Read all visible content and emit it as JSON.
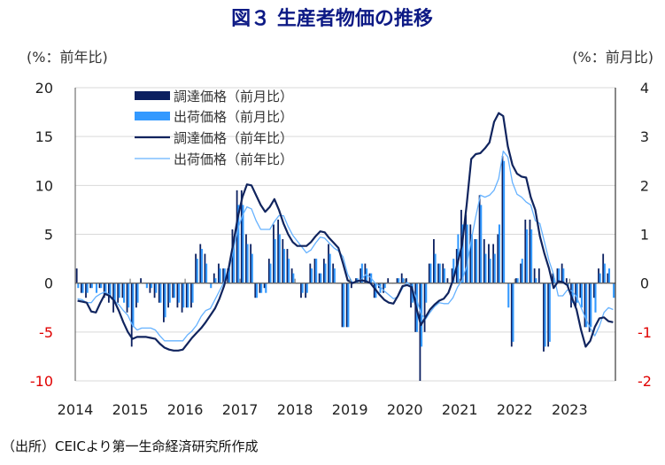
{
  "chart_data": {
    "type": "bar+line",
    "title": "図３ 生産者物価の推移",
    "left_axis_label": "(%：前年比)",
    "right_axis_label": "(%：前月比)",
    "left_ylim": [
      -10,
      20
    ],
    "left_ticks": [
      "20",
      "15",
      "10",
      "5",
      "0",
      "-5",
      "-10"
    ],
    "right_ylim": [
      -2,
      4
    ],
    "right_ticks": [
      "4",
      "3",
      "2",
      "1",
      "0",
      "-1",
      "-2"
    ],
    "x_ticks": [
      "2014",
      "2015",
      "2016",
      "2017",
      "2018",
      "2019",
      "2020",
      "2021",
      "2022",
      "2023"
    ],
    "x_start": "2014-01",
    "x_end": "2023-10",
    "grid": true,
    "legend_position": "top-left",
    "source": "（出所）CEICより第一生命経済研究所作成",
    "series": [
      {
        "name": "調達価格（前月比）",
        "kind": "bar",
        "axis": "right",
        "color": "#0c2060",
        "values": [
          0.3,
          -0.2,
          -0.3,
          -0.1,
          0.0,
          -0.1,
          -0.3,
          -0.4,
          -0.6,
          -0.4,
          -0.3,
          -0.6,
          -1.3,
          -0.5,
          0.1,
          0.0,
          -0.2,
          -0.3,
          -0.4,
          -0.8,
          -0.5,
          -0.3,
          -0.5,
          -0.6,
          -0.5,
          -0.5,
          0.6,
          0.8,
          0.6,
          0.0,
          0.2,
          0.4,
          0.3,
          0.3,
          1.1,
          1.9,
          1.9,
          1.0,
          0.8,
          -0.3,
          -0.2,
          -0.1,
          0.5,
          1.2,
          1.3,
          0.9,
          0.7,
          0.3,
          0.0,
          -0.3,
          -0.3,
          0.4,
          0.5,
          0.2,
          0.5,
          0.8,
          0.4,
          0.0,
          -0.9,
          -0.9,
          -0.1,
          0.1,
          0.3,
          0.4,
          0.2,
          -0.3,
          -0.1,
          -0.2,
          0.1,
          0.0,
          0.1,
          0.2,
          0.1,
          -0.5,
          -1.0,
          -2.0,
          -1.0,
          0.4,
          0.9,
          0.4,
          0.4,
          0.1,
          0.3,
          0.7,
          1.5,
          1.4,
          1.2,
          0.9,
          1.8,
          0.9,
          0.8,
          0.8,
          1.0,
          2.6,
          0.0,
          -1.3,
          0.1,
          0.4,
          1.3,
          1.3,
          0.3,
          0.3,
          -1.4,
          -1.3,
          0.2,
          0.3,
          0.4,
          0.1,
          -0.5,
          -0.5,
          -0.3,
          -0.9,
          -1.0,
          -0.3,
          0.3,
          0.6,
          0.2,
          0.0
        ]
      },
      {
        "name": "出荷価格（前月比）",
        "kind": "bar",
        "axis": "right",
        "color": "#3399ff",
        "values": [
          -0.1,
          -0.2,
          -0.2,
          -0.1,
          -0.2,
          -0.1,
          -0.2,
          -0.3,
          -0.4,
          -0.3,
          -0.4,
          -0.5,
          -0.9,
          -0.4,
          0.0,
          -0.1,
          -0.1,
          -0.2,
          -0.4,
          -0.7,
          -0.4,
          -0.3,
          -0.4,
          -0.5,
          -0.5,
          -0.4,
          0.5,
          0.7,
          0.4,
          -0.1,
          0.1,
          0.3,
          0.3,
          0.3,
          0.9,
          1.6,
          1.6,
          0.8,
          0.6,
          -0.3,
          -0.2,
          -0.2,
          0.4,
          0.9,
          1.0,
          0.7,
          0.5,
          0.2,
          0.0,
          -0.2,
          -0.2,
          0.3,
          0.5,
          0.2,
          0.4,
          0.6,
          0.3,
          0.0,
          -0.9,
          -0.9,
          0.0,
          0.1,
          0.4,
          0.3,
          0.2,
          -0.3,
          -0.2,
          -0.1,
          0.0,
          0.0,
          0.1,
          0.1,
          0.0,
          -0.4,
          -1.0,
          -1.3,
          -0.4,
          0.4,
          0.6,
          0.4,
          0.3,
          0.0,
          0.5,
          1.0,
          1.2,
          1.2,
          1.0,
          0.9,
          1.6,
          0.6,
          0.5,
          0.6,
          1.2,
          2.5,
          -0.5,
          -1.2,
          0.1,
          0.5,
          1.1,
          1.1,
          0.1,
          0.0,
          -1.3,
          -1.2,
          0.1,
          0.3,
          0.3,
          -0.1,
          -0.4,
          -0.4,
          -0.5,
          -0.9,
          -0.9,
          -0.6,
          0.2,
          0.4,
          0.3,
          -0.3
        ]
      },
      {
        "name": "調達価格（前年比）",
        "kind": "line",
        "axis": "left",
        "color": "#10245e",
        "values": [
          -1.8,
          -1.9,
          -2.0,
          -2.9,
          -3.0,
          -2.0,
          -1.1,
          -1.3,
          -1.8,
          -2.8,
          -4.0,
          -5.0,
          -5.7,
          -5.5,
          -5.5,
          -5.5,
          -5.6,
          -5.7,
          -6.2,
          -6.6,
          -6.8,
          -6.9,
          -6.9,
          -6.8,
          -6.2,
          -5.6,
          -5.1,
          -4.6,
          -4.0,
          -3.3,
          -2.6,
          -1.6,
          -0.3,
          1.5,
          4.0,
          6.7,
          8.8,
          10.1,
          10.0,
          9.0,
          8.0,
          7.3,
          7.8,
          8.6,
          7.5,
          6.1,
          5.0,
          4.2,
          3.8,
          3.8,
          3.8,
          4.2,
          4.8,
          5.3,
          5.2,
          4.6,
          4.1,
          3.6,
          2.0,
          0.3,
          0.0,
          0.2,
          0.3,
          0.2,
          0.0,
          -0.6,
          -1.2,
          -1.7,
          -2.0,
          -2.1,
          -1.3,
          -0.3,
          -0.2,
          -0.4,
          -2.5,
          -4.3,
          -3.5,
          -2.7,
          -2.2,
          -1.8,
          -1.6,
          -1.0,
          0.3,
          2.0,
          3.9,
          8.0,
          12.7,
          13.2,
          13.3,
          13.8,
          14.4,
          16.5,
          17.4,
          17.1,
          14.0,
          12.1,
          11.2,
          10.9,
          10.8,
          8.8,
          7.5,
          4.8,
          3.0,
          1.5,
          -0.5,
          0.2,
          0.1,
          -0.2,
          -1.5,
          -2.7,
          -4.8,
          -6.5,
          -5.9,
          -4.5,
          -3.6,
          -3.5,
          -3.9,
          -4.0
        ]
      },
      {
        "name": "出荷価格（前年比）",
        "kind": "line",
        "axis": "left",
        "color": "#66b2ff",
        "values": [
          -1.6,
          -1.7,
          -2.0,
          -2.0,
          -1.4,
          -1.1,
          -0.9,
          -1.2,
          -1.8,
          -2.2,
          -2.8,
          -3.3,
          -4.3,
          -4.8,
          -4.6,
          -4.6,
          -4.6,
          -4.8,
          -5.4,
          -5.9,
          -5.9,
          -5.9,
          -5.9,
          -5.9,
          -5.3,
          -4.9,
          -4.3,
          -3.4,
          -2.8,
          -2.6,
          -1.7,
          -0.8,
          0.1,
          1.2,
          3.3,
          5.5,
          6.9,
          7.8,
          7.6,
          6.4,
          5.5,
          5.5,
          5.5,
          6.3,
          6.9,
          6.9,
          5.8,
          4.9,
          4.3,
          3.7,
          3.1,
          3.4,
          4.1,
          4.7,
          4.6,
          4.1,
          3.6,
          3.3,
          2.7,
          0.9,
          0.1,
          0.1,
          0.4,
          0.9,
          0.6,
          0.0,
          -0.3,
          -0.8,
          -1.2,
          -1.6,
          -1.4,
          -0.5,
          0.1,
          -0.4,
          -1.5,
          -3.1,
          -3.7,
          -3.0,
          -2.4,
          -2.0,
          -2.1,
          -2.1,
          -1.5,
          -0.4,
          0.3,
          1.7,
          4.4,
          6.8,
          9.0,
          8.8,
          9.0,
          9.5,
          10.7,
          13.5,
          12.9,
          10.3,
          9.1,
          8.8,
          8.3,
          8.0,
          6.4,
          6.1,
          4.2,
          2.3,
          0.9,
          -1.3,
          -1.3,
          -0.7,
          -0.8,
          -1.4,
          -2.5,
          -3.6,
          -4.6,
          -5.4,
          -4.4,
          -3.0,
          -2.5,
          -2.7
        ]
      }
    ]
  }
}
